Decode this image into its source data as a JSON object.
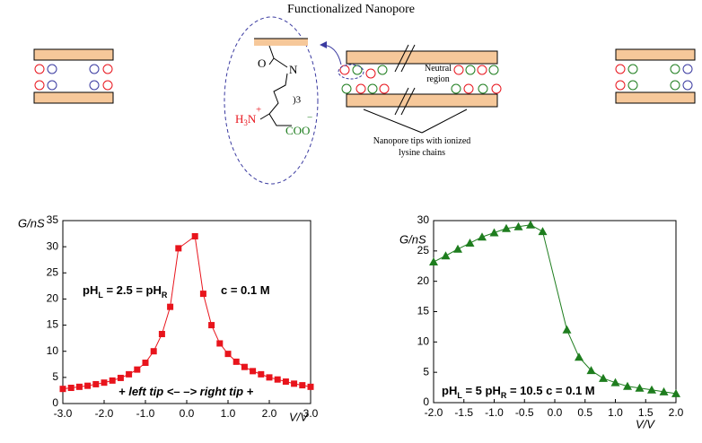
{
  "figure": {
    "title": "Functionalized Nanopore",
    "neutral": [
      "Neutral",
      "region"
    ],
    "tips": [
      "Nanopore tips with ionized",
      "lysine chains"
    ],
    "chem": {
      "o": "O",
      "n": "N",
      "h": "H",
      "h_sub": "3",
      "hn": "N",
      "coo": "COO",
      "chain": ")3",
      "plus": "+",
      "minus": "−"
    }
  },
  "chart_data": [
    {
      "type": "line",
      "y_label": "G/nS",
      "x_label": "V/V",
      "x": [
        -3.0,
        -2.8,
        -2.6,
        -2.4,
        -2.2,
        -2.0,
        -1.8,
        -1.6,
        -1.4,
        -1.2,
        -1.0,
        -0.8,
        -0.6,
        -0.4,
        -0.2,
        0.2,
        0.4,
        0.6,
        0.8,
        1.0,
        1.2,
        1.4,
        1.6,
        1.8,
        2.0,
        2.2,
        2.4,
        2.6,
        2.8,
        3.0
      ],
      "series": [
        {
          "color": "#e8141c",
          "marker": "square",
          "values": [
            2.8,
            3.0,
            3.2,
            3.4,
            3.7,
            4.0,
            4.4,
            4.9,
            5.6,
            6.5,
            7.8,
            10.0,
            13.3,
            18.5,
            29.7,
            32.0,
            21.0,
            15.0,
            11.5,
            9.5,
            8.0,
            7.0,
            6.2,
            5.6,
            5.0,
            4.6,
            4.2,
            3.8,
            3.5,
            3.2
          ]
        }
      ],
      "xlim": [
        -3,
        3
      ],
      "ylim": [
        0,
        35
      ],
      "xticks": [
        {
          "value": -3,
          "label": "-3.0"
        },
        {
          "value": -2,
          "label": "-2.0"
        },
        {
          "value": -1,
          "label": "-1.0"
        },
        {
          "value": 0,
          "label": "0.0"
        },
        {
          "value": 1,
          "label": "1.0"
        },
        {
          "value": 2,
          "label": "2.0"
        },
        {
          "value": 3,
          "label": "3.0"
        }
      ],
      "yticks": [
        0,
        5,
        10,
        15,
        20,
        25,
        30,
        35
      ],
      "annotations": [
        [
          "pH",
          "L",
          " = 2.5 = pH",
          "R"
        ],
        [
          "c = 0.1 M"
        ],
        [
          "+ left tip <– –> right tip +"
        ]
      ]
    },
    {
      "type": "line",
      "y_label": "G/nS",
      "x_label": "V/V",
      "x": [
        -2.0,
        -1.8,
        -1.6,
        -1.4,
        -1.2,
        -1.0,
        -0.8,
        -0.6,
        -0.4,
        -0.2,
        0.2,
        0.4,
        0.6,
        0.8,
        1.0,
        1.2,
        1.4,
        1.6,
        1.8,
        2.0
      ],
      "series": [
        {
          "color": "#1e7d1e",
          "marker": "triangle",
          "values": [
            23.2,
            24.2,
            25.3,
            26.3,
            27.3,
            28.0,
            28.7,
            29.0,
            29.3,
            28.2,
            12.0,
            7.5,
            5.3,
            4.0,
            3.3,
            2.7,
            2.4,
            2.1,
            1.8,
            1.5
          ]
        }
      ],
      "xlim": [
        -2,
        2
      ],
      "ylim": [
        0,
        30
      ],
      "xticks": [
        {
          "value": -2,
          "label": "-2.0"
        },
        {
          "value": -1.5,
          "label": "-1.5"
        },
        {
          "value": -1,
          "label": "-1.0"
        },
        {
          "value": -0.5,
          "label": "-0.5"
        },
        {
          "value": 0,
          "label": "0.0"
        },
        {
          "value": 0.5,
          "label": "0.5"
        },
        {
          "value": 1,
          "label": "1.0"
        },
        {
          "value": 1.5,
          "label": "1.5"
        },
        {
          "value": 2,
          "label": "2.0"
        }
      ],
      "yticks": [
        0,
        5,
        10,
        15,
        20,
        25,
        30
      ],
      "annotations": [
        [
          "pH",
          "L",
          " = 5   pH",
          "R",
          " = 10.5   c = 0.1 M"
        ]
      ]
    }
  ]
}
